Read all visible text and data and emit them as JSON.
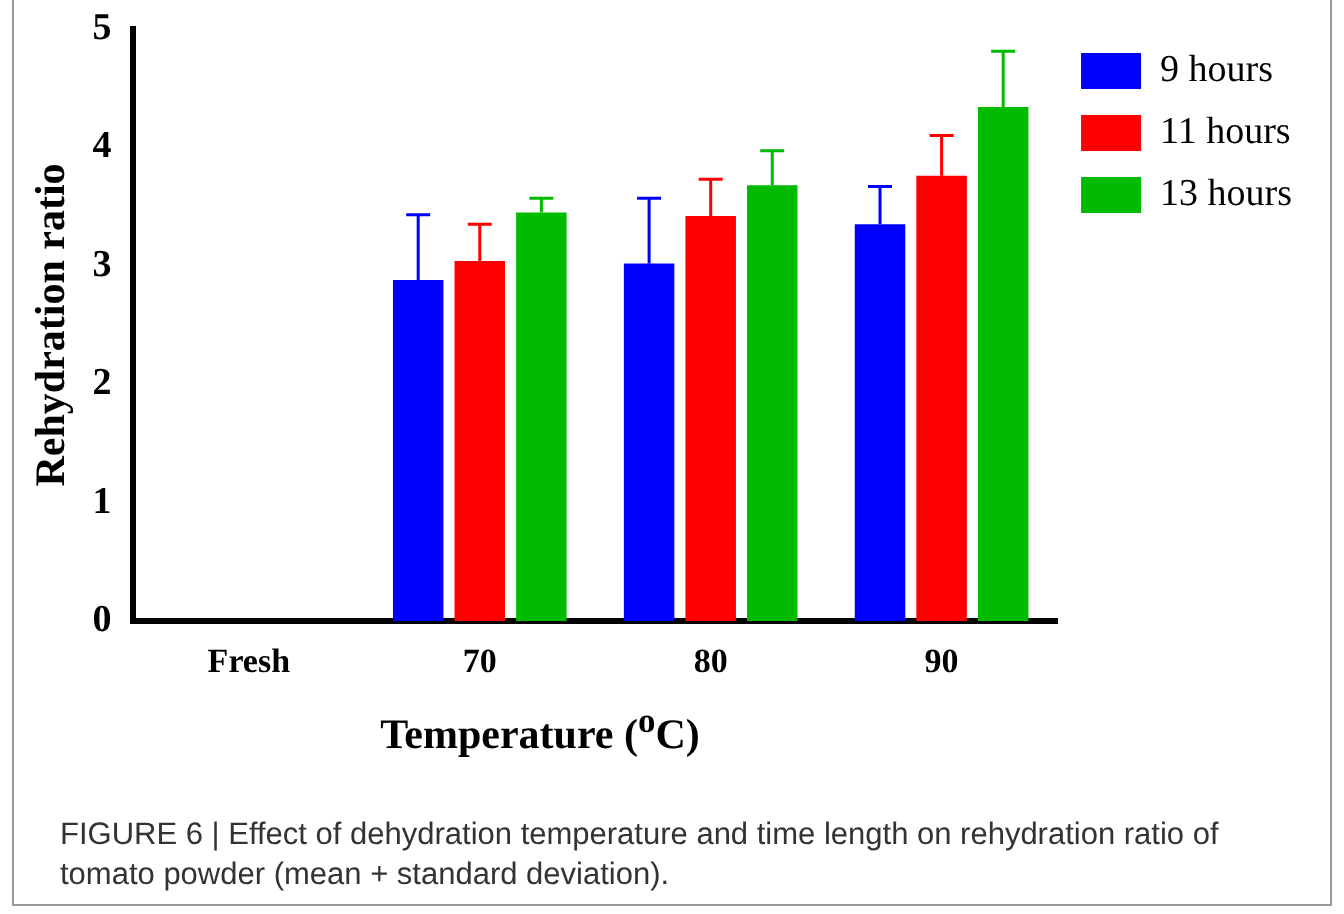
{
  "chart_data": {
    "type": "bar",
    "xlabel": "Temperature ($^{o}$C)",
    "ylabel": "Rehydration ratio",
    "categories": [
      "Fresh",
      "70",
      "80",
      "90"
    ],
    "series": [
      {
        "name": "9 hours",
        "color": "#0000ff",
        "values": [
          null,
          2.88,
          3.02,
          3.35
        ],
        "errors": [
          null,
          [
            2.88,
            3.43
          ],
          [
            3.02,
            3.57
          ],
          [
            3.35,
            3.67
          ]
        ]
      },
      {
        "name": "11 hours",
        "color": "#ff0000",
        "values": [
          null,
          3.04,
          3.42,
          3.76
        ],
        "errors": [
          null,
          [
            3.04,
            3.35
          ],
          [
            3.42,
            3.73
          ],
          [
            3.76,
            4.1
          ]
        ]
      },
      {
        "name": "13 hours",
        "color": "#00bb00",
        "values": [
          null,
          3.45,
          3.68,
          4.34
        ],
        "errors": [
          null,
          [
            3.45,
            3.57
          ],
          [
            3.68,
            3.97
          ],
          [
            4.34,
            4.81
          ]
        ]
      }
    ],
    "ylim": [
      0,
      5
    ],
    "yticks": [
      0,
      1,
      2,
      3,
      4,
      5
    ],
    "grid": false,
    "legend": "top right",
    "annotations": [
      "FIGURE 6 | Effect of dehydration temperature and time length on rehydration ratio of tomato powder (mean + standard deviation)."
    ]
  }
}
